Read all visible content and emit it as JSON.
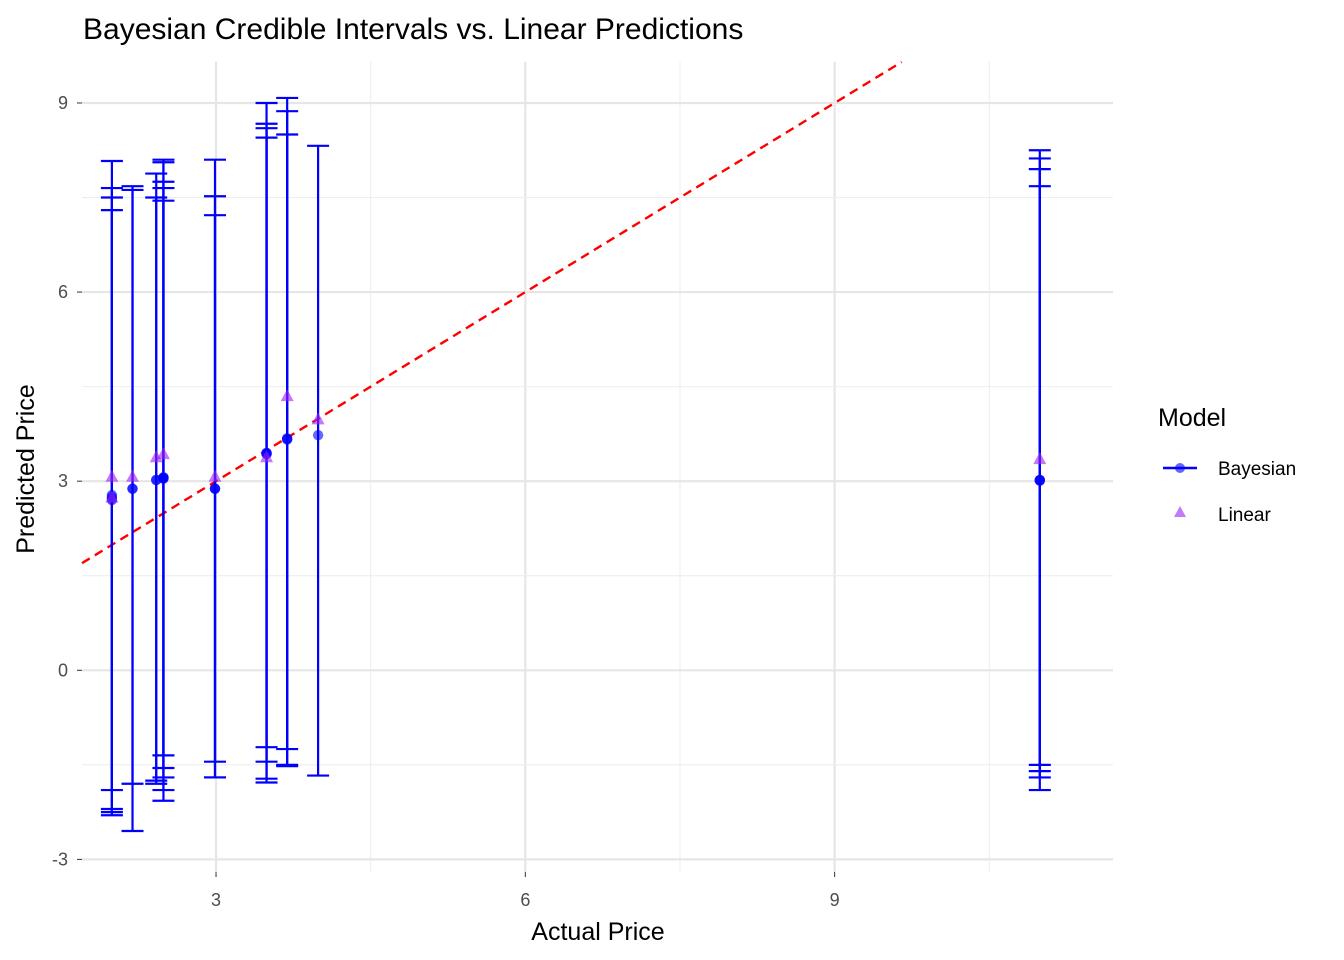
{
  "chart_data": {
    "type": "scatter",
    "title": "Bayesian Credible Intervals vs. Linear Predictions",
    "xlabel": "Actual Price",
    "ylabel": "Predicted Price",
    "xlim": [
      1.7,
      11.7
    ],
    "ylim": [
      -3.2,
      9.65
    ],
    "x_ticks": [
      3,
      6,
      9
    ],
    "y_ticks": [
      -3,
      0,
      3,
      6,
      9
    ],
    "grid": true,
    "legend": {
      "title": "Model",
      "position": "right",
      "entries": [
        {
          "label": "Bayesian",
          "color": "#0000ff",
          "shape": "circle-with-line"
        },
        {
          "label": "Linear",
          "color": "#a020f0",
          "shape": "triangle"
        }
      ]
    },
    "reference_line": {
      "slope": 1,
      "intercept": 0,
      "color": "#ff0000",
      "style": "dashed"
    },
    "series": [
      {
        "name": "Bayesian",
        "color": "#0000ff",
        "points": [
          {
            "x": 1.99,
            "y": 2.78,
            "lower": -2.2,
            "upper": 7.3
          },
          {
            "x": 1.99,
            "y": 2.72,
            "lower": -2.25,
            "upper": 7.5
          },
          {
            "x": 1.99,
            "y": 2.75,
            "lower": -2.3,
            "upper": 7.65
          },
          {
            "x": 1.99,
            "y": 2.7,
            "lower": -1.9,
            "upper": 8.08
          },
          {
            "x": 2.19,
            "y": 2.88,
            "lower": -2.55,
            "upper": 7.62
          },
          {
            "x": 2.19,
            "y": 2.88,
            "lower": -1.8,
            "upper": 7.68
          },
          {
            "x": 2.42,
            "y": 3.02,
            "lower": -1.8,
            "upper": 7.88
          },
          {
            "x": 2.42,
            "y": 3.02,
            "lower": -1.75,
            "upper": 7.5
          },
          {
            "x": 2.49,
            "y": 3.04,
            "lower": -2.07,
            "upper": 8.1
          },
          {
            "x": 2.49,
            "y": 3.05,
            "lower": -1.9,
            "upper": 8.06
          },
          {
            "x": 2.49,
            "y": 3.05,
            "lower": -1.7,
            "upper": 7.75
          },
          {
            "x": 2.49,
            "y": 3.06,
            "lower": -1.55,
            "upper": 7.65
          },
          {
            "x": 2.49,
            "y": 3.06,
            "lower": -1.35,
            "upper": 7.45
          },
          {
            "x": 2.99,
            "y": 2.88,
            "lower": -1.7,
            "upper": 8.1
          },
          {
            "x": 2.99,
            "y": 2.88,
            "lower": -1.45,
            "upper": 7.52
          },
          {
            "x": 2.99,
            "y": 2.88,
            "lower": -1.7,
            "upper": 7.22
          },
          {
            "x": 3.49,
            "y": 3.45,
            "lower": -1.78,
            "upper": 9.0
          },
          {
            "x": 3.49,
            "y": 3.44,
            "lower": -1.72,
            "upper": 8.67
          },
          {
            "x": 3.49,
            "y": 3.44,
            "lower": -1.45,
            "upper": 8.6
          },
          {
            "x": 3.49,
            "y": 3.43,
            "lower": -1.22,
            "upper": 8.45
          },
          {
            "x": 3.69,
            "y": 3.68,
            "lower": -1.5,
            "upper": 9.08
          },
          {
            "x": 3.69,
            "y": 3.67,
            "lower": -1.25,
            "upper": 8.87
          },
          {
            "x": 3.69,
            "y": 3.66,
            "lower": -1.52,
            "upper": 8.5
          },
          {
            "x": 3.99,
            "y": 3.73,
            "lower": -1.67,
            "upper": 8.32
          },
          {
            "x": 10.99,
            "y": 3.02,
            "lower": -1.9,
            "upper": 8.25
          },
          {
            "x": 10.99,
            "y": 3.01,
            "lower": -1.7,
            "upper": 8.12
          },
          {
            "x": 10.99,
            "y": 3.01,
            "lower": -1.6,
            "upper": 7.95
          },
          {
            "x": 10.99,
            "y": 3.02,
            "lower": -1.5,
            "upper": 7.68
          }
        ]
      },
      {
        "name": "Linear",
        "color": "#a020f0",
        "points": [
          {
            "x": 1.99,
            "y": 3.07
          },
          {
            "x": 1.99,
            "y": 2.74
          },
          {
            "x": 2.19,
            "y": 3.07
          },
          {
            "x": 2.42,
            "y": 3.38
          },
          {
            "x": 2.49,
            "y": 3.43
          },
          {
            "x": 2.99,
            "y": 3.07
          },
          {
            "x": 3.49,
            "y": 3.38
          },
          {
            "x": 3.69,
            "y": 4.35
          },
          {
            "x": 3.99,
            "y": 3.98
          },
          {
            "x": 10.99,
            "y": 3.35
          }
        ]
      }
    ]
  }
}
